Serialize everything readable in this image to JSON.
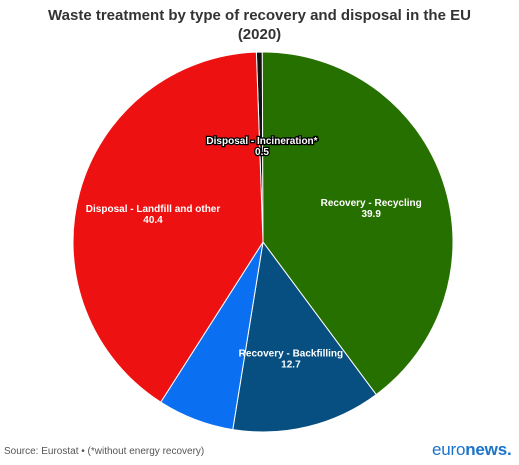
{
  "chart_data": {
    "type": "pie",
    "title_line1": "Waste treatment by type of recovery and disposal in the EU",
    "title_line2": "(2020)",
    "slices": [
      {
        "label": "Disposal - Incineration*",
        "value": 0.5,
        "color": "#111111"
      },
      {
        "label": "Recovery - Recycling",
        "value": 39.9,
        "color": "#267000"
      },
      {
        "label": "Recovery - Backfilling",
        "value": 12.7,
        "color": "#064f80"
      },
      {
        "label": "",
        "value": 6.5,
        "color": "#0a6ff0"
      },
      {
        "label": "Disposal - Landfill and other",
        "value": 40.4,
        "color": "#ee1111"
      }
    ]
  },
  "source": "Source: Eurostat • (*without energy recovery)",
  "logo": {
    "part1": "euro",
    "part2": "news."
  }
}
